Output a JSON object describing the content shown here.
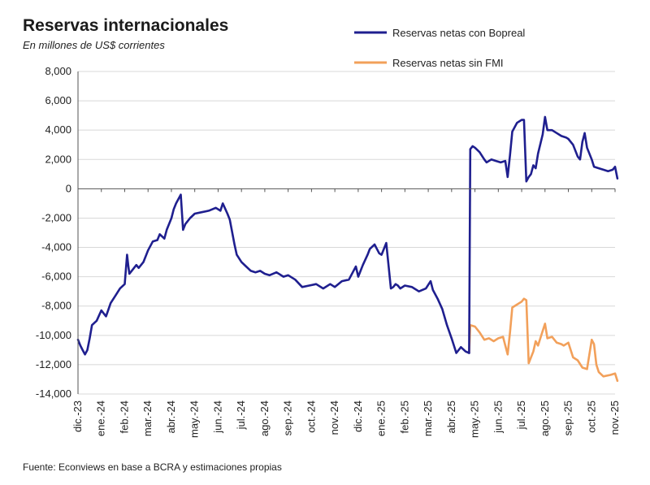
{
  "title": "Reservas internacionales",
  "subtitle": "En millones de US$ corrientes",
  "source": "Fuente: Econviews en base a BCRA y estimaciones propias",
  "colors": {
    "series1": "#1f1f8f",
    "series2": "#f2a05a",
    "grid": "#d8d8d8",
    "axis": "#555555"
  },
  "chart_data": {
    "type": "line",
    "title": "Reservas internacionales",
    "subtitle": "En millones de US$ corrientes",
    "ylim": [
      -14000,
      8000
    ],
    "yticks": [
      8000,
      6000,
      4000,
      2000,
      0,
      -2000,
      -4000,
      -6000,
      -8000,
      -10000,
      -12000,
      -14000
    ],
    "ytick_labels": [
      "8,000",
      "6,000",
      "4,000",
      "2,000",
      "0",
      "-2,000",
      "-4,000",
      "-6,000",
      "-8,000",
      "-10,000",
      "-12,000",
      "-14,000"
    ],
    "categories": [
      "dic.-23",
      "ene.-24",
      "feb.-24",
      "mar.-24",
      "abr.-24",
      "may.-24",
      "jun.-24",
      "jul.-24",
      "ago.-24",
      "sep.-24",
      "oct.-24",
      "nov.-24",
      "dic.-24",
      "ene.-25",
      "feb.-25",
      "mar.-25",
      "abr.-25",
      "may.-25",
      "jun.-25",
      "jul.-25",
      "ago.-25",
      "sep.-25",
      "oct.-25",
      "nov.-25"
    ],
    "grid": "horizontal",
    "legend_position": "top-right",
    "series": [
      {
        "name": "Reservas netas con Bopreal",
        "color": "#1f1f8f",
        "x": [
          0.0,
          0.1,
          0.2,
          0.3,
          0.4,
          0.5,
          0.6,
          0.8,
          1.0,
          1.2,
          1.4,
          1.6,
          1.8,
          2.0,
          2.1,
          2.15,
          2.2,
          2.3,
          2.5,
          2.6,
          2.8,
          3.0,
          3.2,
          3.4,
          3.5,
          3.7,
          3.8,
          4.0,
          4.1,
          4.2,
          4.3,
          4.4,
          4.5,
          4.6,
          4.7,
          4.8,
          5.0,
          5.3,
          5.6,
          5.9,
          6.1,
          6.2,
          6.4,
          6.5,
          6.7,
          6.8,
          7.0,
          7.2,
          7.4,
          7.6,
          7.8,
          8.0,
          8.2,
          8.5,
          8.8,
          9.0,
          9.3,
          9.6,
          9.9,
          10.2,
          10.5,
          10.8,
          11.0,
          11.3,
          11.6,
          11.9,
          12.0,
          12.2,
          12.4,
          12.5,
          12.7,
          12.9,
          13.0,
          13.2,
          13.4,
          13.5,
          13.6,
          13.7,
          13.8,
          14.0,
          14.3,
          14.6,
          14.9,
          15.1,
          15.2,
          15.4,
          15.6,
          15.8,
          16.0,
          16.2,
          16.4,
          16.6,
          16.75
        ],
        "values": [
          -10300,
          -10700,
          -11000,
          -11300,
          -11000,
          -10200,
          -9300,
          -9000,
          -8300,
          -8700,
          -7800,
          -7300,
          -6800,
          -6500,
          -4500,
          -5200,
          -5800,
          -5600,
          -5200,
          -5400,
          -5000,
          -4200,
          -3600,
          -3500,
          -3100,
          -3400,
          -2800,
          -2000,
          -1400,
          -1000,
          -700,
          -400,
          -2800,
          -2400,
          -2200,
          -2000,
          -1700,
          -1600,
          -1500,
          -1300,
          -1500,
          -1000,
          -1700,
          -2100,
          -3800,
          -4500,
          -5000,
          -5300,
          -5600,
          -5700,
          -5600,
          -5800,
          -5900,
          -5700,
          -6000,
          -5900,
          -6200,
          -6700,
          -6600,
          -6500,
          -6800,
          -6500,
          -6700,
          -6300,
          -6200,
          -5300,
          -6000,
          -5200,
          -4500,
          -4100,
          -3800,
          -4400,
          -4500,
          -3700,
          -6800,
          -6700,
          -6500,
          -6600,
          -6800,
          -6600,
          -6700,
          -7000,
          -6800,
          -6300,
          -6900,
          -7500,
          -8200,
          -9300,
          -10200,
          -11200,
          -10800,
          -11100,
          -11200
        ]
      },
      {
        "name": "Reservas netas sin FMI",
        "color": "#f2a05a",
        "x": [
          16.75,
          16.8,
          17.0,
          17.2,
          17.4,
          17.6,
          17.8,
          18.0,
          18.2,
          18.4,
          18.5,
          18.6,
          18.8,
          19.0,
          19.1,
          19.2,
          19.3,
          19.5,
          19.6,
          19.7,
          19.9,
          20.0,
          20.1,
          20.3,
          20.5,
          20.7,
          20.8,
          21.0,
          21.2,
          21.4,
          21.6,
          21.8,
          22.0,
          22.1,
          22.2,
          22.3,
          22.5,
          22.8,
          23.0,
          23.1
        ],
        "values": [
          -11200,
          -9300,
          -9400,
          -9800,
          -10300,
          -10200,
          -10400,
          -10200,
          -10100,
          -11300,
          -9800,
          -8100,
          -7900,
          -7700,
          -7500,
          -7600,
          -11900,
          -11100,
          -10400,
          -10700,
          -9700,
          -9200,
          -10200,
          -10100,
          -10500,
          -10600,
          -10700,
          -10500,
          -11500,
          -11700,
          -12200,
          -12300,
          -10300,
          -10600,
          -12000,
          -12500,
          -12800,
          -12700,
          -12600,
          -13100
        ]
      },
      {
        "name": "",
        "color": "#1f1f8f",
        "x": [
          16.75,
          16.8,
          16.9,
          17.0,
          17.2,
          17.4,
          17.5,
          17.7,
          17.9,
          18.1,
          18.3,
          18.4,
          18.5,
          18.6,
          18.7,
          18.8,
          19.0,
          19.1,
          19.2,
          19.3,
          19.4,
          19.5,
          19.6,
          19.7,
          19.9,
          20.0,
          20.1,
          20.3,
          20.5,
          20.7,
          20.9,
          21.0,
          21.2,
          21.4,
          21.5,
          21.6,
          21.7,
          21.8,
          22.0,
          22.1,
          22.3,
          22.5,
          22.7,
          22.9,
          23.0,
          23.1
        ],
        "values": [
          -11200,
          2700,
          2900,
          2800,
          2500,
          2000,
          1800,
          2000,
          1900,
          1800,
          1900,
          800,
          2300,
          3900,
          4200,
          4500,
          4700,
          4700,
          500,
          800,
          1000,
          1600,
          1400,
          2400,
          3700,
          4900,
          4000,
          4000,
          3800,
          3600,
          3500,
          3400,
          3000,
          2200,
          2000,
          3200,
          3800,
          2800,
          2000,
          1500,
          1400,
          1300,
          1200,
          1300,
          1500,
          700
        ]
      }
    ]
  }
}
